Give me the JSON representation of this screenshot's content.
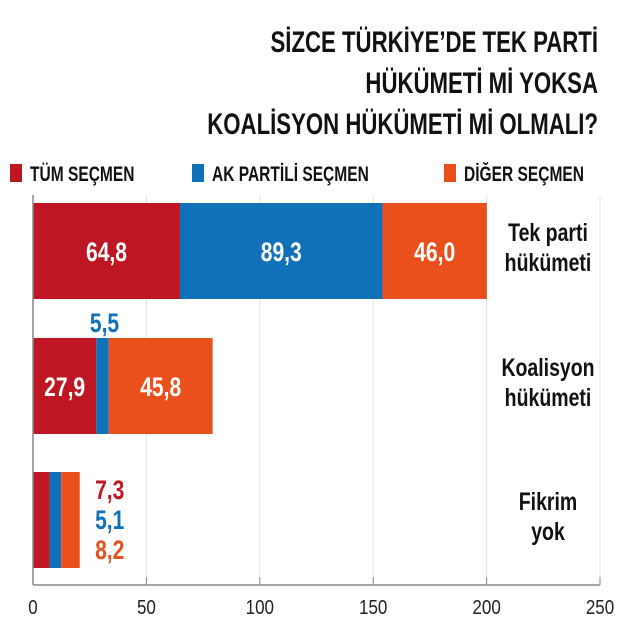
{
  "chart_data": {
    "type": "bar",
    "orientation": "horizontal",
    "stacked": true,
    "title": [
      "SİZCE TÜRKİYE’DE TEK PARTİ",
      "HÜKÜMETİ Mİ YOKSA",
      "KOALİSYON HÜKÜMETİ Mİ OLMALI?"
    ],
    "categories": [
      [
        "Tek parti",
        "hükümeti"
      ],
      [
        "Koalisyon",
        "hükümeti"
      ],
      [
        "Fikrim",
        "yok"
      ]
    ],
    "series": [
      {
        "name": "TÜM SEÇMEN",
        "color": "#BE1622",
        "values": [
          64.8,
          27.9,
          7.3
        ],
        "labels": [
          "64,8",
          "27,9",
          "7,3"
        ]
      },
      {
        "name": "AK PARTİLİ SEÇMEN",
        "color": "#1070B8",
        "values": [
          89.3,
          5.5,
          5.1
        ],
        "labels": [
          "89,3",
          "5,5",
          "5,1"
        ]
      },
      {
        "name": "DİĞER SEÇMEN",
        "color": "#E9501C",
        "values": [
          46.0,
          45.8,
          8.2
        ],
        "labels": [
          "46,0",
          "45,8",
          "8,2"
        ]
      }
    ],
    "xlim": [
      0,
      250
    ],
    "xticks": [
      0,
      50,
      100,
      150,
      200,
      250
    ],
    "xtick_labels": [
      "0",
      "50",
      "100",
      "150",
      "200",
      "250"
    ],
    "grid": true,
    "legend": "top"
  }
}
